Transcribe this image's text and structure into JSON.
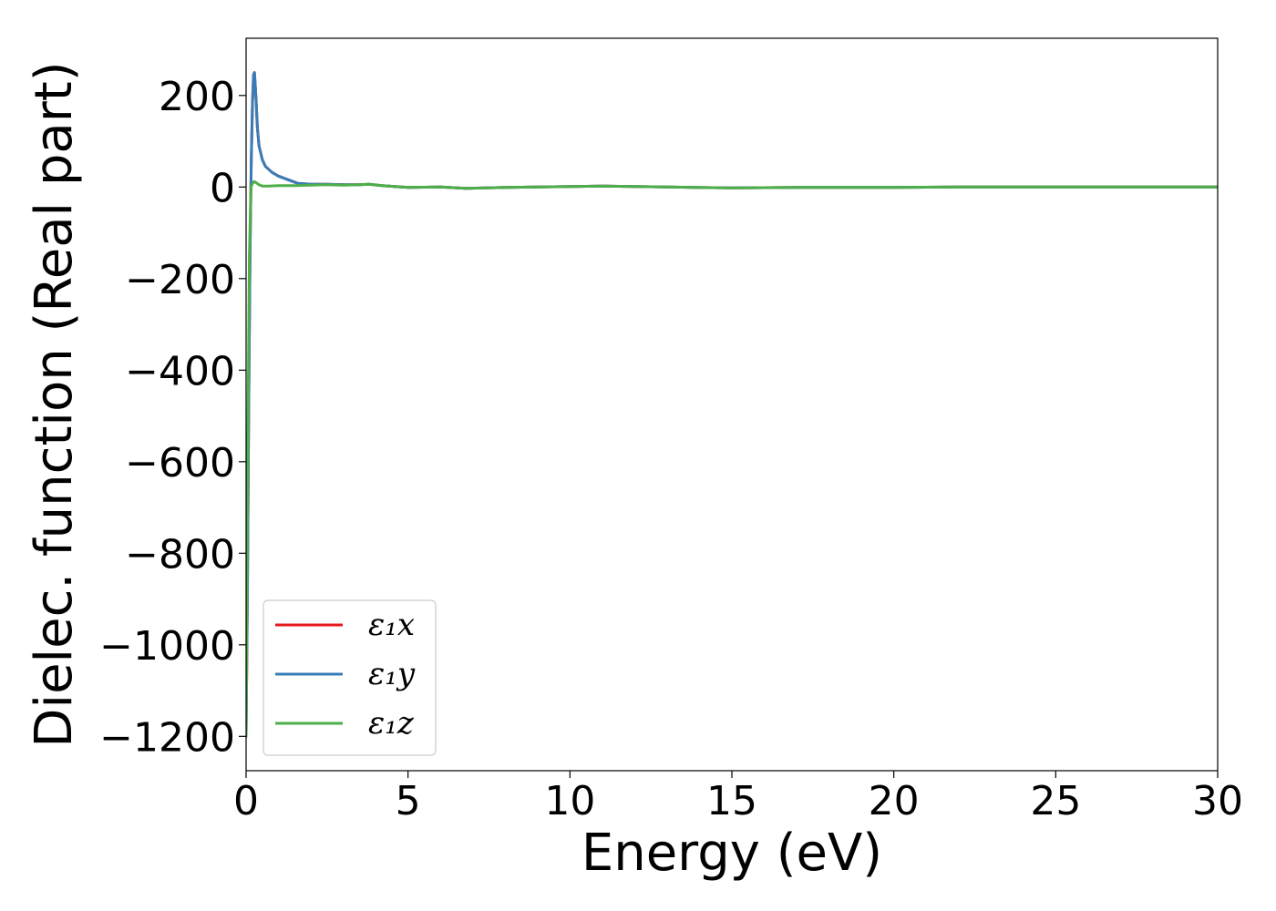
{
  "chart_data": {
    "type": "line",
    "xlabel": "Energy (eV)",
    "ylabel": "Dielec. function (Real part)",
    "xlim": [
      0,
      30
    ],
    "ylim": [
      -1275,
      325
    ],
    "x_ticks": [
      0,
      5,
      10,
      15,
      20,
      25,
      30
    ],
    "y_ticks": [
      200,
      0,
      -200,
      -400,
      -600,
      -800,
      -1000,
      -1200
    ],
    "x_tick_labels": [
      "0",
      "5",
      "10",
      "15",
      "20",
      "25",
      "30"
    ],
    "y_tick_labels": [
      "200",
      "0",
      "−200",
      "−400",
      "−600",
      "−800",
      "−1000",
      "−1200"
    ],
    "grid": false,
    "legend_position": "lower-left",
    "series": [
      {
        "name": "ε₁x",
        "color": "#e41a1c",
        "x": [
          0.0,
          0.04,
          0.08,
          0.12,
          0.16,
          0.2,
          0.23,
          0.26,
          0.3,
          0.35,
          0.4,
          0.5,
          0.6,
          0.8,
          1.0,
          1.3,
          1.6,
          1.8,
          2.0,
          2.5,
          3.0,
          3.5,
          3.8,
          4.2,
          5.0,
          6.0,
          6.8,
          8.0,
          10.0,
          11.0,
          12.0,
          13.0,
          15.0,
          17.0,
          20.0,
          22.0,
          25.0,
          28.0,
          30.0
        ],
        "y": [
          -1200,
          -900,
          -500,
          -150,
          60,
          190,
          245,
          250,
          200,
          130,
          90,
          60,
          45,
          32,
          24,
          16,
          8,
          7,
          6,
          6,
          5,
          5,
          6,
          3,
          -1,
          0,
          -3,
          -1,
          1,
          2,
          1,
          0,
          -2,
          -1,
          -1,
          0,
          0,
          0,
          0
        ]
      },
      {
        "name": "ε₁y",
        "color": "#377eb8",
        "x": [
          0.0,
          0.04,
          0.08,
          0.12,
          0.16,
          0.2,
          0.23,
          0.26,
          0.3,
          0.35,
          0.4,
          0.5,
          0.6,
          0.8,
          1.0,
          1.3,
          1.6,
          1.8,
          2.0,
          2.5,
          3.0,
          3.5,
          3.8,
          4.2,
          5.0,
          6.0,
          6.8,
          8.0,
          10.0,
          11.0,
          12.0,
          13.0,
          15.0,
          17.0,
          20.0,
          22.0,
          25.0,
          28.0,
          30.0
        ],
        "y": [
          -1200,
          -900,
          -500,
          -150,
          60,
          190,
          245,
          250,
          200,
          130,
          90,
          60,
          45,
          32,
          24,
          16,
          8,
          7,
          6,
          6,
          5,
          5,
          6,
          3,
          -1,
          0,
          -3,
          -1,
          1,
          2,
          1,
          0,
          -2,
          -1,
          -1,
          0,
          0,
          0,
          0
        ]
      },
      {
        "name": "ε₁z",
        "color": "#4daf4a",
        "x": [
          0.0,
          0.05,
          0.1,
          0.15,
          0.2,
          0.25,
          0.3,
          0.4,
          0.5,
          0.7,
          1.0,
          1.5,
          2.0,
          2.5,
          3.0,
          3.5,
          3.8,
          4.2,
          5.0,
          6.0,
          6.8,
          8.0,
          10.0,
          11.0,
          12.0,
          13.0,
          15.0,
          17.0,
          20.0,
          22.0,
          25.0,
          28.0,
          30.0
        ],
        "y": [
          -1200,
          -600,
          -150,
          0,
          8,
          12,
          10,
          5,
          2,
          2,
          3,
          3,
          4,
          5,
          4,
          5,
          6,
          3,
          -1,
          0,
          -3,
          -1,
          1,
          2,
          1,
          0,
          -2,
          -1,
          -1,
          0,
          0,
          0,
          0
        ]
      }
    ]
  }
}
